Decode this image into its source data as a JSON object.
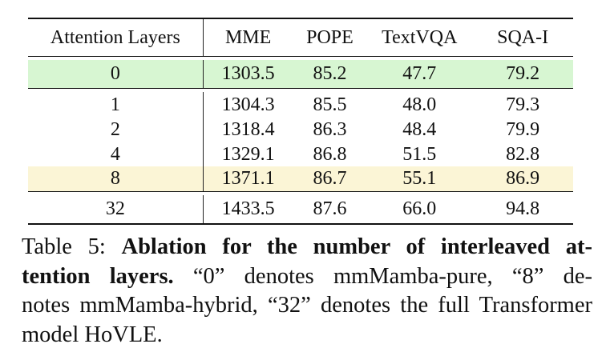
{
  "table": {
    "headers": [
      "Attention Layers",
      "MME",
      "POPE",
      "TextVQA",
      "SQA-I"
    ],
    "groups": [
      [
        {
          "layers": "0",
          "mme": "1303.5",
          "pope": "85.2",
          "textvqa": "47.7",
          "sqa": "79.2",
          "highlight": "#d7f6d2"
        }
      ],
      [
        {
          "layers": "1",
          "mme": "1304.3",
          "pope": "85.5",
          "textvqa": "48.0",
          "sqa": "79.3",
          "highlight": ""
        },
        {
          "layers": "2",
          "mme": "1318.4",
          "pope": "86.3",
          "textvqa": "48.4",
          "sqa": "79.9",
          "highlight": ""
        },
        {
          "layers": "4",
          "mme": "1329.1",
          "pope": "86.8",
          "textvqa": "51.5",
          "sqa": "82.8",
          "highlight": ""
        },
        {
          "layers": "8",
          "mme": "1371.1",
          "pope": "86.7",
          "textvqa": "55.1",
          "sqa": "86.9",
          "highlight": "#fbf5d6"
        }
      ],
      [
        {
          "layers": "32",
          "mme": "1433.5",
          "pope": "87.6",
          "textvqa": "66.0",
          "sqa": "94.8",
          "highlight": ""
        }
      ]
    ]
  },
  "caption": {
    "lines": [
      {
        "plain_before": "Table 5:  ",
        "bold": "Ablation for the number of interleaved at-",
        "plain_after": ""
      },
      {
        "plain_before": "",
        "bold": "tention layers.",
        "plain_after": "  “0” denotes mmMamba-pure, “8” de-"
      },
      {
        "plain_before": "notes mmMamba-hybrid, “32” denotes the full Transformer",
        "bold": "",
        "plain_after": ""
      },
      {
        "plain_before": "model HoVLE.",
        "bold": "",
        "plain_after": ""
      }
    ]
  }
}
